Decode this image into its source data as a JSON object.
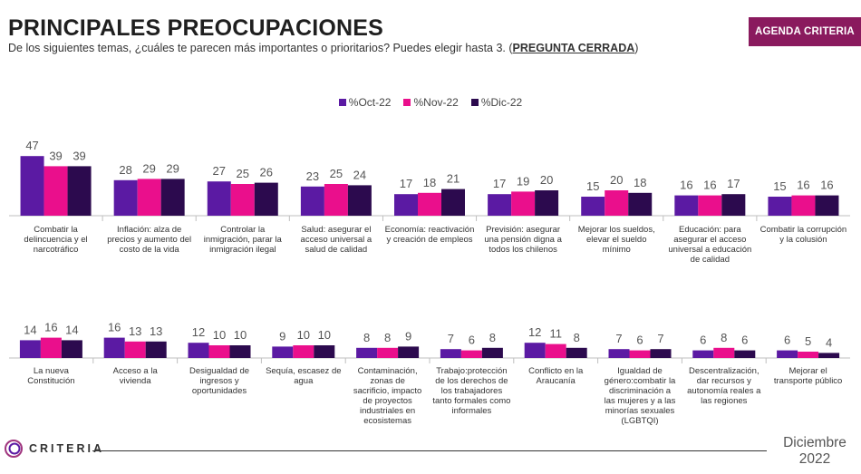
{
  "header": {
    "title": "PRINCIPALES PREOCUPACIONES",
    "subtitle": "De los siguientes temas, ¿cuáles te parecen más importantes o prioritarios? Puedes elegir hasta 3. (",
    "subtitle_tag": "PREGUNTA CERRADA",
    "subtitle_end": ")",
    "badge": "AGENDA CRITERIA"
  },
  "footer": {
    "logo": "CRITERIA",
    "date_month": "Diciembre",
    "date_year": "2022"
  },
  "chart_data": {
    "type": "bar",
    "legend_position": "top-center",
    "series": [
      {
        "name": "%Oct-22",
        "color": "#5b1aa3"
      },
      {
        "name": "%Nov-22",
        "color": "#ea0f8c"
      },
      {
        "name": "%Dic-22",
        "color": "#2c0a4e"
      }
    ],
    "rows": [
      {
        "categories": [
          "Combatir la delincuencia y el narcotráfico",
          "Inflación: alza de precios y aumento del costo de la vida",
          "Controlar la inmigración, parar la inmigración ilegal",
          "Salud: asegurar el acceso universal a salud de calidad",
          "Economía: reactivación y creación de empleos",
          "Previsión: asegurar una pensión digna a todos los chilenos",
          "Mejorar los sueldos, elevar el sueldo mínimo",
          "Educación: para asegurar el acceso universal a educación de calidad",
          "Combatir la corrupción y la colusión"
        ],
        "values": [
          [
            47,
            39,
            39
          ],
          [
            28,
            29,
            29
          ],
          [
            27,
            25,
            26
          ],
          [
            23,
            25,
            24
          ],
          [
            17,
            18,
            21
          ],
          [
            17,
            19,
            20
          ],
          [
            15,
            20,
            18
          ],
          [
            16,
            16,
            17
          ],
          [
            15,
            16,
            16
          ]
        ]
      },
      {
        "categories": [
          "La nueva Constitución",
          "Acceso a la vivienda",
          "Desigualdad de ingresos y oportunidades",
          "Sequía, escasez de agua",
          "Contaminación, zonas de sacrificio, impacto de proyectos industriales en ecosistemas",
          "Trabajo:protección de los derechos de los trabajadores tanto formales como informales",
          "Conflicto en la Araucanía",
          "Igualdad de género:combatir la discriminación a las mujeres y a las minorías sexuales (LGBTQI)",
          "Descentralización, dar recursos y autonomía reales a las regiones",
          "Mejorar el transporte público"
        ],
        "values": [
          [
            14,
            16,
            14
          ],
          [
            16,
            13,
            13
          ],
          [
            12,
            10,
            10
          ],
          [
            9,
            10,
            10
          ],
          [
            8,
            8,
            9
          ],
          [
            7,
            6,
            8
          ],
          [
            12,
            11,
            8
          ],
          [
            7,
            6,
            7
          ],
          [
            6,
            8,
            6
          ],
          [
            6,
            5,
            4
          ]
        ]
      }
    ]
  }
}
